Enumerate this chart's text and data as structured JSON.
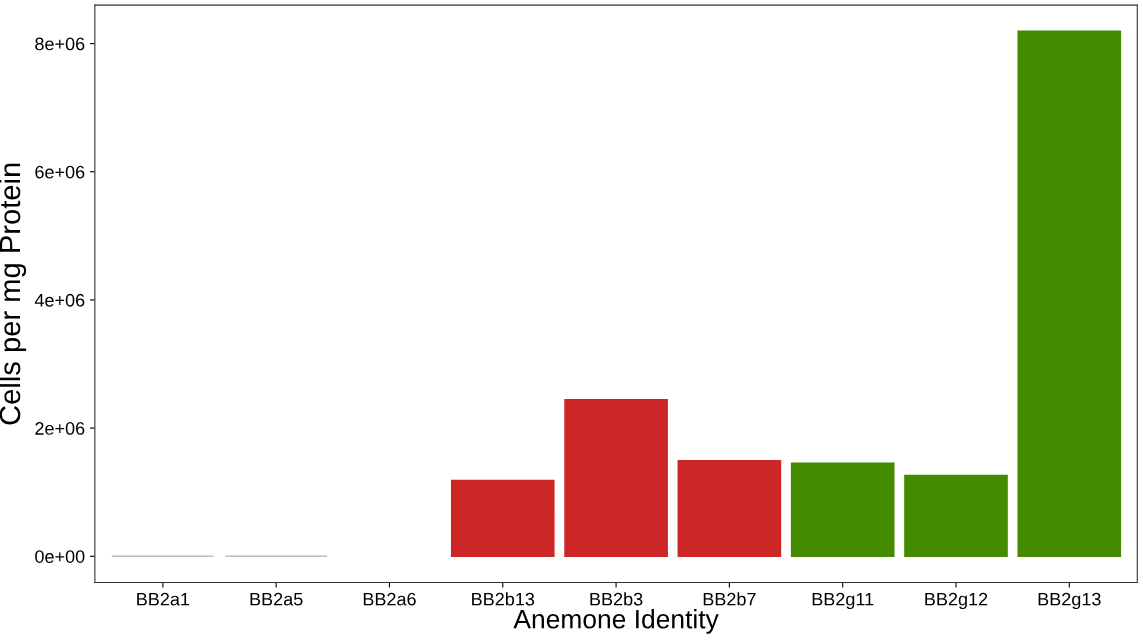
{
  "chart_data": {
    "type": "bar",
    "xlabel": "Anemone Identity",
    "ylabel": "Cells per mg Protein",
    "categories": [
      "BB2a1",
      "BB2a5",
      "BB2a6",
      "BB2b13",
      "BB2b3",
      "BB2b7",
      "BB2g11",
      "BB2g12",
      "BB2g13"
    ],
    "values": [
      0,
      0,
      null,
      1180000,
      2440000,
      1490000,
      1450000,
      1260000,
      8190000
    ],
    "colors": [
      "#bebebe",
      "#bebebe",
      "#bebebe",
      "#cd2626",
      "#cd2626",
      "#cd2626",
      "#458b00",
      "#458b00",
      "#458b00"
    ],
    "ylim": [
      -410000,
      8600000
    ],
    "yticks": [
      {
        "value": 0,
        "label": "0e+00"
      },
      {
        "value": 2000000,
        "label": "2e+06"
      },
      {
        "value": 4000000,
        "label": "4e+06"
      },
      {
        "value": 6000000,
        "label": "6e+06"
      },
      {
        "value": 8000000,
        "label": "8e+06"
      }
    ],
    "grid": false,
    "legend": false
  }
}
